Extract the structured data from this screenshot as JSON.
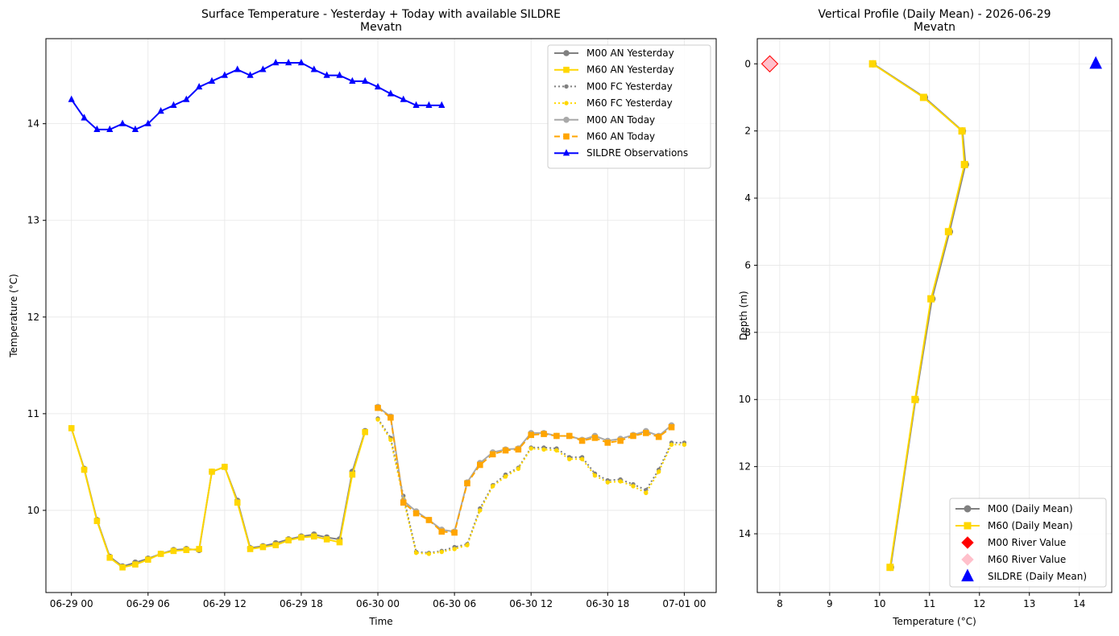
{
  "colors": {
    "m00_an": "#808080",
    "m60_an": "#FFD700",
    "m00_today": "#A9A9A9",
    "m60_today": "#FFA500",
    "sildre": "#0000FF",
    "m00_river": "#FF0000",
    "m60_river": "#FFC0CB",
    "grid": "#e6e6e6"
  },
  "chart_data": [
    {
      "type": "line",
      "title": "Surface Temperature - Yesterday + Today with available SILDRE",
      "subtitle": "Mevatn",
      "xlabel": "Time",
      "ylabel": "Temperature (°C)",
      "x_unit": "hours since 06-29 00:00",
      "xlim": [
        -2.0,
        50.5
      ],
      "ylim": [
        9.15,
        14.88
      ],
      "x_ticks": [
        0,
        6,
        12,
        18,
        24,
        30,
        36,
        42,
        48
      ],
      "x_tick_labels": [
        "06-29 00",
        "06-29 06",
        "06-29 12",
        "06-29 18",
        "06-30 00",
        "06-30 06",
        "06-30 12",
        "06-30 18",
        "07-01 00"
      ],
      "y_ticks": [
        10,
        11,
        12,
        13,
        14
      ],
      "y_tick_labels": [
        "10",
        "11",
        "12",
        "13",
        "14"
      ],
      "grid": true,
      "legend_position": "top-right",
      "series": [
        {
          "name": "M00 AN Yesterday",
          "color_key": "m00_an",
          "style": "solid",
          "marker": "circle",
          "x": [
            0,
            1,
            2,
            3,
            4,
            5,
            6,
            7,
            8,
            9,
            10,
            11,
            12,
            13,
            14,
            15,
            16,
            17,
            18,
            19,
            20,
            21,
            22,
            23
          ],
          "y": [
            10.85,
            10.43,
            9.9,
            9.52,
            9.42,
            9.46,
            9.5,
            9.55,
            9.59,
            9.6,
            9.59,
            10.4,
            10.45,
            10.1,
            9.61,
            9.63,
            9.66,
            9.7,
            9.73,
            9.75,
            9.72,
            9.7,
            10.4,
            10.82
          ]
        },
        {
          "name": "M60 AN Yesterday",
          "color_key": "m60_an",
          "style": "solid",
          "marker": "square",
          "x": [
            0,
            1,
            2,
            3,
            4,
            5,
            6,
            7,
            8,
            9,
            10,
            11,
            12,
            13,
            14,
            15,
            16,
            17,
            18,
            19,
            20,
            21,
            22,
            23
          ],
          "y": [
            10.85,
            10.42,
            9.89,
            9.51,
            9.41,
            9.44,
            9.49,
            9.55,
            9.58,
            9.59,
            9.6,
            10.4,
            10.45,
            10.08,
            9.6,
            9.62,
            9.64,
            9.69,
            9.72,
            9.73,
            9.7,
            9.67,
            10.37,
            10.81
          ]
        },
        {
          "name": "M00 FC Yesterday",
          "color_key": "m00_an",
          "style": "dotted",
          "marker": "circle",
          "x": [
            24,
            25,
            26,
            27,
            28,
            29,
            30,
            31,
            32,
            33,
            34,
            35,
            36,
            37,
            38,
            39,
            40,
            41,
            42,
            43,
            44,
            45,
            46,
            47,
            48
          ],
          "y": [
            10.95,
            10.75,
            10.15,
            9.57,
            9.56,
            9.58,
            9.62,
            9.65,
            10.02,
            10.26,
            10.37,
            10.44,
            10.65,
            10.65,
            10.64,
            10.55,
            10.55,
            10.38,
            10.31,
            10.32,
            10.27,
            10.21,
            10.42,
            10.7,
            10.7
          ]
        },
        {
          "name": "M60 FC Yesterday",
          "color_key": "m60_an",
          "style": "dotted",
          "marker": "circle",
          "x": [
            24,
            25,
            26,
            27,
            28,
            29,
            30,
            31,
            32,
            33,
            34,
            35,
            36,
            37,
            38,
            39,
            40,
            41,
            42,
            43,
            44,
            45,
            46,
            47,
            48
          ],
          "y": [
            10.94,
            10.73,
            10.12,
            9.56,
            9.55,
            9.57,
            9.6,
            9.64,
            10.0,
            10.25,
            10.35,
            10.43,
            10.64,
            10.63,
            10.62,
            10.53,
            10.53,
            10.36,
            10.29,
            10.3,
            10.25,
            10.18,
            10.4,
            10.68,
            10.68
          ]
        },
        {
          "name": "M00 AN Today",
          "color_key": "m00_today",
          "style": "solid",
          "marker": "circle",
          "x": [
            24,
            25,
            26,
            27,
            28,
            29,
            30,
            31,
            32,
            33,
            34,
            35,
            36,
            37,
            38,
            39,
            40,
            41,
            42,
            43,
            44,
            45,
            46,
            47
          ],
          "y": [
            11.07,
            10.97,
            10.1,
            9.99,
            9.9,
            9.8,
            9.78,
            10.29,
            10.49,
            10.6,
            10.63,
            10.64,
            10.8,
            10.8,
            10.77,
            10.77,
            10.73,
            10.77,
            10.72,
            10.74,
            10.78,
            10.82,
            10.77,
            10.88
          ]
        },
        {
          "name": "M60 AN Today",
          "color_key": "m60_today",
          "style": "dashed",
          "marker": "square",
          "x": [
            24,
            25,
            26,
            27,
            28,
            29,
            30,
            31,
            32,
            33,
            34,
            35,
            36,
            37,
            38,
            39,
            40,
            41,
            42,
            43,
            44,
            45,
            46,
            47
          ],
          "y": [
            11.06,
            10.96,
            10.08,
            9.97,
            9.9,
            9.78,
            9.77,
            10.28,
            10.47,
            10.58,
            10.62,
            10.63,
            10.78,
            10.79,
            10.77,
            10.77,
            10.72,
            10.75,
            10.7,
            10.72,
            10.77,
            10.8,
            10.76,
            10.86
          ]
        },
        {
          "name": "SILDRE Observations",
          "color_key": "sildre",
          "style": "solid",
          "marker": "triangle",
          "x": [
            0,
            1,
            2,
            3,
            4,
            5,
            6,
            7,
            8,
            9,
            10,
            11,
            12,
            13,
            14,
            15,
            16,
            17,
            18,
            19,
            20,
            21,
            22,
            23,
            24,
            25,
            26,
            27,
            28,
            29
          ],
          "y": [
            14.25,
            14.06,
            13.94,
            13.94,
            14.0,
            13.94,
            14.0,
            14.13,
            14.19,
            14.25,
            14.38,
            14.44,
            14.5,
            14.56,
            14.5,
            14.56,
            14.63,
            14.63,
            14.63,
            14.56,
            14.5,
            14.5,
            14.44,
            14.44,
            14.38,
            14.31,
            14.25,
            14.19,
            14.19,
            14.19
          ]
        }
      ]
    },
    {
      "type": "line",
      "title": "Vertical Profile (Daily Mean) - 2026-06-29",
      "subtitle": "Mevatn",
      "xlabel": "Temperature (°C)",
      "ylabel": "Depth (m)",
      "xlim": [
        7.55,
        14.65
      ],
      "ylim": [
        15.75,
        -0.75
      ],
      "y_inverted": true,
      "x_ticks": [
        8,
        9,
        10,
        11,
        12,
        13,
        14
      ],
      "x_tick_labels": [
        "8",
        "9",
        "10",
        "11",
        "12",
        "13",
        "14"
      ],
      "y_ticks": [
        0,
        2,
        4,
        6,
        8,
        10,
        12,
        14
      ],
      "y_tick_labels": [
        "0",
        "2",
        "4",
        "6",
        "8",
        "10",
        "12",
        "14"
      ],
      "grid": true,
      "legend_position": "bottom-right",
      "series": [
        {
          "name": "M00 (Daily Mean)",
          "color_key": "m00_an",
          "marker": "circle",
          "temperature": [
            9.87,
            10.9,
            11.66,
            11.72,
            11.4,
            11.05,
            10.72,
            10.22
          ],
          "depth": [
            0,
            1,
            2,
            3,
            5,
            7,
            10,
            15
          ]
        },
        {
          "name": "M60 (Daily Mean)",
          "color_key": "m60_an",
          "marker": "square",
          "temperature": [
            9.86,
            10.88,
            11.65,
            11.7,
            11.38,
            11.03,
            10.71,
            10.21
          ],
          "depth": [
            0,
            1,
            2,
            3,
            5,
            7,
            10,
            15
          ]
        }
      ],
      "points": [
        {
          "name": "M00 River Value",
          "color_key": "m00_river",
          "marker": "diamond",
          "temperature": 7.8,
          "depth": 0
        },
        {
          "name": "M60 River Value",
          "color_key": "m60_river",
          "marker": "diamond",
          "temperature": 7.8,
          "depth": 0
        },
        {
          "name": "SILDRE (Daily Mean)",
          "color_key": "sildre",
          "marker": "triangle",
          "temperature": 14.33,
          "depth": 0
        }
      ]
    }
  ]
}
